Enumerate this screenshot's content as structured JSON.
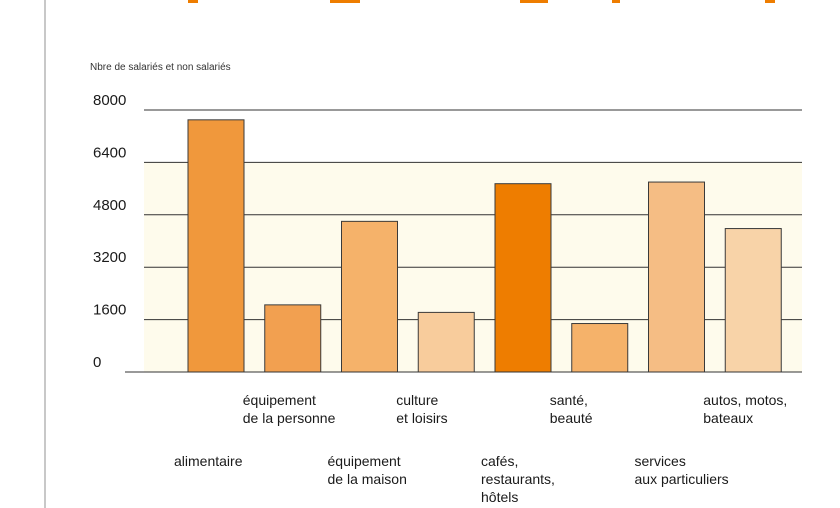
{
  "chart_data": {
    "type": "bar",
    "ylabel": "Nbre de salariés et non salariés",
    "ylim": [
      0,
      8000
    ],
    "yticks": [
      0,
      1600,
      3200,
      4800,
      6400,
      8000
    ],
    "grid": true,
    "categories": [
      {
        "lines": [
          "alimentaire"
        ],
        "value": 7700,
        "color": "#f0983c"
      },
      {
        "lines": [
          "équipement",
          "de la personne"
        ],
        "value": 2050,
        "color": "#f2a050"
      },
      {
        "lines": [
          "équipement",
          "de la maison"
        ],
        "value": 4600,
        "color": "#f5b26a"
      },
      {
        "lines": [
          "culture",
          "et loisirs"
        ],
        "value": 1820,
        "color": "#f8cc9c"
      },
      {
        "lines": [
          "cafés,",
          "restaurants,",
          "hôtels"
        ],
        "value": 5750,
        "color": "#ee7d00"
      },
      {
        "lines": [
          "santé,",
          "beauté"
        ],
        "value": 1480,
        "color": "#f5b26a"
      },
      {
        "lines": [
          "services",
          "aux particuliers"
        ],
        "value": 5800,
        "color": "#f5bd84"
      },
      {
        "lines": [
          "autos, motos,",
          "bateaux"
        ],
        "value": 4380,
        "color": "#f8d3a8"
      }
    ]
  },
  "colors": {
    "title_accent": "#ee7d00",
    "background_band": "#fefbec",
    "bar_stroke": "#3a3a3a"
  }
}
